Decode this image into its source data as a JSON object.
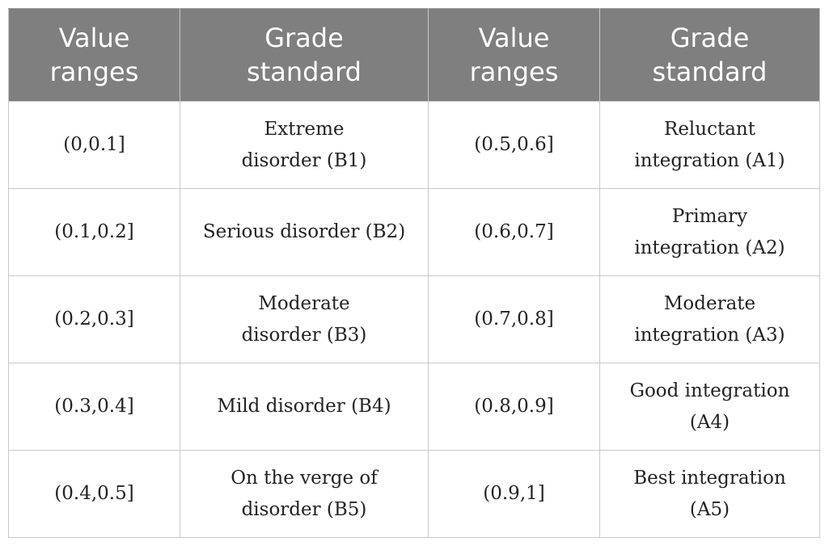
{
  "table": {
    "headers": [
      "Value ranges",
      "Grade standard",
      "Value ranges",
      "Grade standard"
    ],
    "rows": [
      {
        "range_b": "(0,0.1]",
        "grade_b": "Extreme disorder (B1)",
        "range_a": "(0.5,0.6]",
        "grade_a": "Reluctant integration (A1)"
      },
      {
        "range_b": "(0.1,0.2]",
        "grade_b": "Serious disorder (B2)",
        "range_a": "(0.6,0.7]",
        "grade_a": "Primary integration (A2)"
      },
      {
        "range_b": "(0.2,0.3]",
        "grade_b": "Moderate disorder (B3)",
        "range_a": "(0.7,0.8]",
        "grade_a": "Moderate integration (A3)"
      },
      {
        "range_b": "(0.3,0.4]",
        "grade_b": "Mild disorder (B4)",
        "range_a": "(0.8,0.9]",
        "grade_a": "Good integration (A4)"
      },
      {
        "range_b": "(0.4,0.5]",
        "grade_b": "On the verge of disorder (B5)",
        "range_a": "(0.9,1]",
        "grade_a": "Best integration (A5)"
      }
    ]
  }
}
